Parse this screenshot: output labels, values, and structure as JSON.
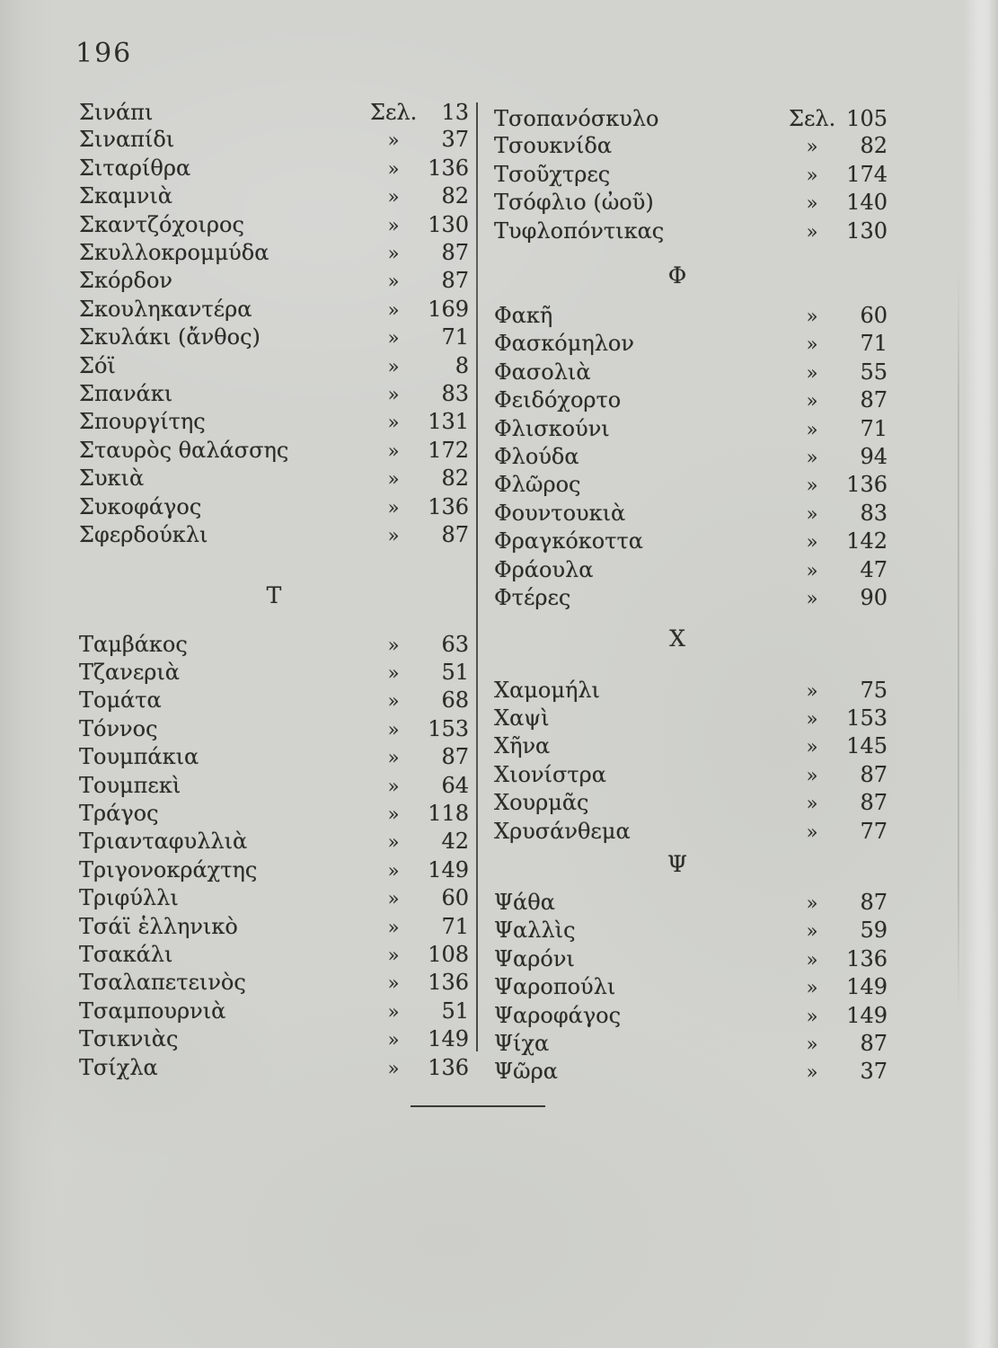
{
  "page": {
    "number": "196"
  },
  "colors": {
    "paper": "#d2d3cf",
    "ink": "#2b2b27",
    "rule": "#3a3a34"
  },
  "columns": [
    {
      "side": "left",
      "sections": [
        {
          "header": null,
          "entries": [
            {
              "term": "Σινάπι",
              "mark": "Σελ.",
              "page": "13"
            },
            {
              "term": "Σιναπίδι",
              "mark": "»",
              "page": "37"
            },
            {
              "term": "Σιταρίθρα",
              "mark": "»",
              "page": "136"
            },
            {
              "term": "Σκαμνιὰ",
              "mark": "»",
              "page": "82"
            },
            {
              "term": "Σκαντζόχοιρος",
              "mark": "»",
              "page": "130"
            },
            {
              "term": "Σκυλλοκρομμύδα",
              "mark": "»",
              "page": "87"
            },
            {
              "term": "Σκόρδον",
              "mark": "»",
              "page": "87"
            },
            {
              "term": "Σκουληκαντέρα",
              "mark": "»",
              "page": "169"
            },
            {
              "term": "Σκυλάκι (ἄνθος)",
              "mark": "»",
              "page": "71"
            },
            {
              "term": "Σόϊ",
              "mark": "»",
              "page": "8"
            },
            {
              "term": "Σπανάκι",
              "mark": "»",
              "page": "83"
            },
            {
              "term": "Σπουργίτης",
              "mark": "»",
              "page": "131"
            },
            {
              "term": "Σταυρὸς θαλάσσης",
              "mark": "»",
              "page": "172"
            },
            {
              "term": "Συκιὰ",
              "mark": "»",
              "page": "82"
            },
            {
              "term": "Συκοφάγος",
              "mark": "»",
              "page": "136"
            },
            {
              "term": "Σφερδούκλι",
              "mark": "»",
              "page": "87"
            }
          ]
        },
        {
          "header": "Τ",
          "entries": [
            {
              "term": "Ταμβάκος",
              "mark": "»",
              "page": "63"
            },
            {
              "term": "Τζανεριὰ",
              "mark": "»",
              "page": "51"
            },
            {
              "term": "Τομάτα",
              "mark": "»",
              "page": "68"
            },
            {
              "term": "Τόννος",
              "mark": "»",
              "page": "153"
            },
            {
              "term": "Τουμπάκια",
              "mark": "»",
              "page": "87"
            },
            {
              "term": "Τουμπεκὶ",
              "mark": "»",
              "page": "64"
            },
            {
              "term": "Τράγος",
              "mark": "»",
              "page": "118"
            },
            {
              "term": "Τριανταφυλλιὰ",
              "mark": "»",
              "page": "42"
            },
            {
              "term": "Τριγονοκράχτης",
              "mark": "»",
              "page": "149"
            },
            {
              "term": "Τριφύλλι",
              "mark": "»",
              "page": "60"
            },
            {
              "term": "Τσάϊ ἑλληνικὸ",
              "mark": "»",
              "page": "71"
            },
            {
              "term": "Τσακάλι",
              "mark": "»",
              "page": "108"
            },
            {
              "term": "Τσαλαπετεινὸς",
              "mark": "»",
              "page": "136"
            },
            {
              "term": "Τσαμπουρνιὰ",
              "mark": "»",
              "page": "51"
            },
            {
              "term": "Τσικνιὰς",
              "mark": "»",
              "page": "149"
            },
            {
              "term": "Τσίχλα",
              "mark": "»",
              "page": "136"
            }
          ]
        }
      ]
    },
    {
      "side": "right",
      "sections": [
        {
          "header": null,
          "entries": [
            {
              "term": "Τσοπανόσκυλο",
              "mark": "Σελ.",
              "page": "105"
            },
            {
              "term": "Τσουκνίδα",
              "mark": "»",
              "page": "82"
            },
            {
              "term": "Τσοῦχτρες",
              "mark": "»",
              "page": "174"
            },
            {
              "term": "Τσόφλιο (ὠοῦ)",
              "mark": "»",
              "page": "140"
            },
            {
              "term": "Τυφλοπόντικας",
              "mark": "»",
              "page": "130"
            }
          ]
        },
        {
          "header": "Φ",
          "entries": [
            {
              "term": "Φακῆ",
              "mark": "»",
              "page": "60"
            },
            {
              "term": "Φασκόμηλον",
              "mark": "»",
              "page": "71"
            },
            {
              "term": "Φασολιὰ",
              "mark": "»",
              "page": "55"
            },
            {
              "term": "Φειδόχορτο",
              "mark": "»",
              "page": "87"
            },
            {
              "term": "Φλισκούνι",
              "mark": "»",
              "page": "71"
            },
            {
              "term": "Φλούδα",
              "mark": "»",
              "page": "94"
            },
            {
              "term": "Φλῶρος",
              "mark": "»",
              "page": "136"
            },
            {
              "term": "Φουντουκιὰ",
              "mark": "»",
              "page": "83"
            },
            {
              "term": "Φραγκόκοττα",
              "mark": "»",
              "page": "142"
            },
            {
              "term": "Φράουλα",
              "mark": "»",
              "page": "47"
            },
            {
              "term": "Φτέρες",
              "mark": "»",
              "page": "90"
            }
          ]
        },
        {
          "header": "Χ",
          "entries": [
            {
              "term": "Χαμομήλι",
              "mark": "»",
              "page": "75"
            },
            {
              "term": "Χαψὶ",
              "mark": "»",
              "page": "153"
            },
            {
              "term": "Χῆνα",
              "mark": "»",
              "page": "145"
            },
            {
              "term": "Χιονίστρα",
              "mark": "»",
              "page": "87"
            },
            {
              "term": "Χουρμᾶς",
              "mark": "»",
              "page": "87"
            },
            {
              "term": "Χρυσάνθεμα",
              "mark": "»",
              "page": "77"
            }
          ]
        },
        {
          "header": "Ψ",
          "entries": [
            {
              "term": "Ψάθα",
              "mark": "»",
              "page": "87"
            },
            {
              "term": "Ψαλλὶς",
              "mark": "»",
              "page": "59"
            },
            {
              "term": "Ψαρόνι",
              "mark": "»",
              "page": "136"
            },
            {
              "term": "Ψαροπούλι",
              "mark": "»",
              "page": "149"
            },
            {
              "term": "Ψαροφάγος",
              "mark": "»",
              "page": "149"
            },
            {
              "term": "Ψίχα",
              "mark": "»",
              "page": "87"
            },
            {
              "term": "Ψῶρα",
              "mark": "»",
              "page": "37"
            }
          ]
        }
      ]
    }
  ]
}
